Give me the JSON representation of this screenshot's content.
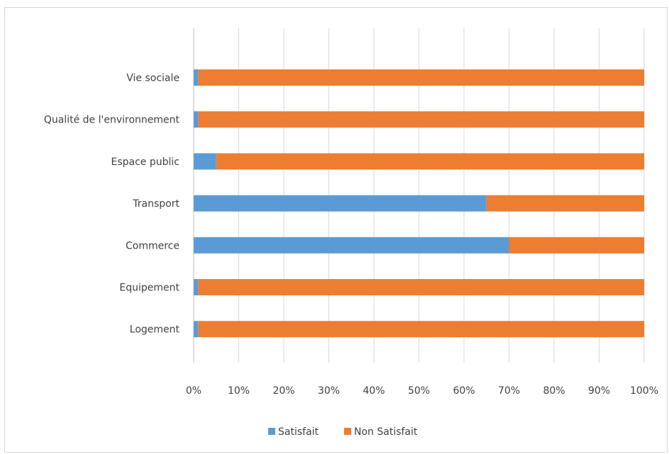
{
  "chart_data": {
    "type": "bar",
    "orientation": "horizontal",
    "stacked": "percent",
    "title": "",
    "xlabel": "",
    "ylabel": "",
    "categories": [
      "Vie sociale",
      "Qualité de l'environnement",
      "Espace public",
      "Transport",
      "Commerce",
      "Equipement",
      "Logement"
    ],
    "series": [
      {
        "name": "Satisfait",
        "values": [
          1,
          1,
          5,
          65,
          70,
          1,
          1
        ],
        "color": "#5b9bd5"
      },
      {
        "name": "Non Satisfait",
        "values": [
          99,
          99,
          95,
          35,
          30,
          99,
          99
        ],
        "color": "#ed7d31"
      }
    ],
    "xlim": [
      0,
      100
    ],
    "xticks": [
      "0%",
      "10%",
      "20%",
      "30%",
      "40%",
      "50%",
      "60%",
      "70%",
      "80%",
      "90%",
      "100%"
    ],
    "grid": "vertical",
    "legend": "bottom"
  }
}
